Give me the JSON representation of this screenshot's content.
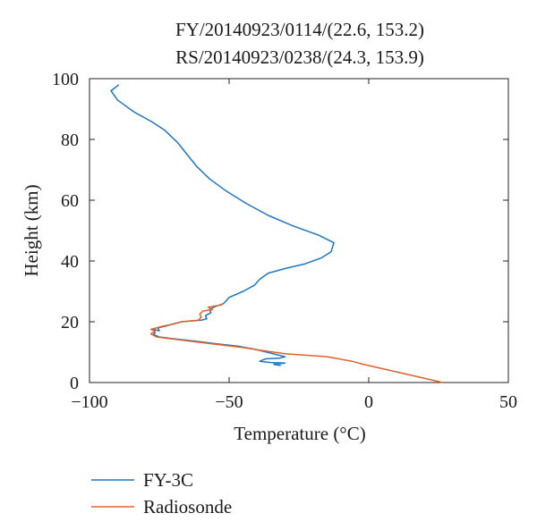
{
  "chart_data": {
    "type": "line",
    "title_lines": [
      "FY/20140923/0114/(22.6, 153.2)",
      "RS/20140923/0238/(24.3, 153.9)"
    ],
    "xlabel": "Temperature (°C)",
    "ylabel": "Height (km)",
    "xlim": [
      -100,
      50
    ],
    "ylim": [
      0,
      100
    ],
    "xticks": [
      -100,
      -50,
      0,
      50
    ],
    "yticks": [
      0,
      20,
      40,
      60,
      80,
      100
    ],
    "xtick_labels": [
      "−100",
      "−50",
      "0",
      "50"
    ],
    "ytick_labels": [
      "0",
      "20",
      "40",
      "60",
      "80",
      "100"
    ],
    "grid": false,
    "legend_position": "below",
    "series": [
      {
        "name": "FY-3C",
        "color": "#1f77c4",
        "points": [
          [
            -89.5,
            98
          ],
          [
            -92.3,
            96
          ],
          [
            -90,
            93
          ],
          [
            -84,
            89
          ],
          [
            -78,
            86
          ],
          [
            -73,
            83
          ],
          [
            -68.5,
            79
          ],
          [
            -65,
            75
          ],
          [
            -61.5,
            71
          ],
          [
            -57,
            67
          ],
          [
            -51,
            63
          ],
          [
            -44,
            59
          ],
          [
            -36,
            55
          ],
          [
            -27,
            51.5
          ],
          [
            -18,
            48.5
          ],
          [
            -12.5,
            46
          ],
          [
            -13.5,
            43
          ],
          [
            -17,
            41
          ],
          [
            -23,
            39
          ],
          [
            -30,
            37.5
          ],
          [
            -36,
            36
          ],
          [
            -39,
            34
          ],
          [
            -41,
            32
          ],
          [
            -45,
            30
          ],
          [
            -50,
            28
          ],
          [
            -51,
            27
          ],
          [
            -52,
            26
          ],
          [
            -53.5,
            25.5
          ],
          [
            -55,
            25
          ],
          [
            -57,
            24
          ],
          [
            -56.5,
            23
          ],
          [
            -58.5,
            22
          ],
          [
            -58,
            21
          ],
          [
            -60,
            20.5
          ],
          [
            -67,
            20
          ],
          [
            -70,
            19.3
          ],
          [
            -73,
            18.5
          ],
          [
            -75.5,
            18
          ],
          [
            -75,
            17
          ],
          [
            -77,
            17.5
          ],
          [
            -76.5,
            16.3
          ],
          [
            -77.2,
            15.8
          ],
          [
            -75,
            15
          ],
          [
            -70,
            14.4
          ],
          [
            -62,
            13.6
          ],
          [
            -55,
            12.8
          ],
          [
            -47,
            12
          ],
          [
            -41,
            11
          ],
          [
            -36.5,
            10
          ],
          [
            -30,
            8.5
          ],
          [
            -32,
            8
          ],
          [
            -37,
            7.8
          ],
          [
            -39,
            7
          ],
          [
            -35,
            6.6
          ],
          [
            -30,
            6.4
          ],
          [
            -34,
            6
          ],
          [
            -31.5,
            5.6
          ]
        ]
      },
      {
        "name": "Radiosonde",
        "color": "#e0622a",
        "points": [
          [
            26.5,
            0
          ],
          [
            10,
            3.5
          ],
          [
            -2,
            6
          ],
          [
            -6,
            7
          ],
          [
            -15,
            8.5
          ],
          [
            -30,
            9.5
          ],
          [
            -38,
            10.5
          ],
          [
            -45,
            11.5
          ],
          [
            -54,
            12.5
          ],
          [
            -63,
            13.5
          ],
          [
            -70,
            14.3
          ],
          [
            -76,
            15
          ],
          [
            -78,
            16
          ],
          [
            -76.5,
            17
          ],
          [
            -78,
            17.5
          ],
          [
            -76,
            18
          ],
          [
            -74,
            18.5
          ],
          [
            -70,
            19.2
          ],
          [
            -67,
            20
          ],
          [
            -61,
            20.5
          ],
          [
            -60,
            21.5
          ],
          [
            -60.5,
            22.5
          ],
          [
            -59.5,
            23.5
          ],
          [
            -56,
            24
          ],
          [
            -57.5,
            24.8
          ],
          [
            -53,
            25.5
          ],
          [
            -52,
            26
          ]
        ]
      }
    ]
  }
}
